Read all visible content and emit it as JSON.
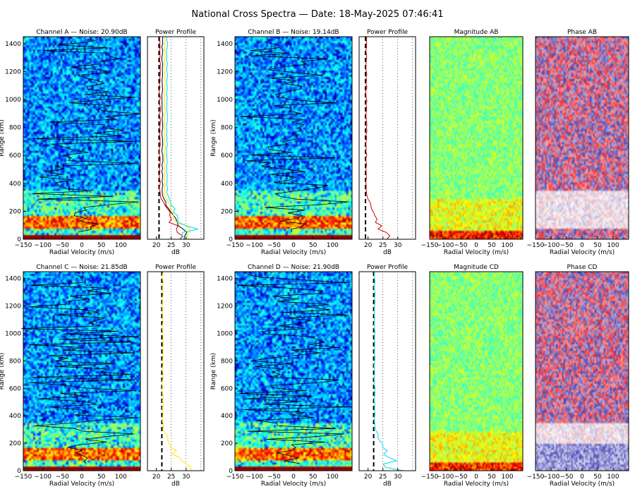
{
  "title": "National Cross Spectra — Date: 18-May-2025 07:46:41",
  "colors": {
    "noise_line": "#000000",
    "channel_a": "#cc0000",
    "channel_b": "#cc0000",
    "channel_c": "#ffe800",
    "channel_d": "#00d8f0",
    "profile_yellow": "#ffe800",
    "profile_cyan": "#00d8f0"
  },
  "chart_data": [
    {
      "id": "channel-a",
      "type": "heatmap",
      "title": "Channel A — Noise: 20.90dB",
      "xlabel": "Radial Velocity (m/s)",
      "ylabel": "Range (km)",
      "xlim": [
        -150,
        150
      ],
      "ylim": [
        0,
        1450
      ],
      "xticks": [
        -150,
        -100,
        -50,
        0,
        50,
        100
      ],
      "yticks": [
        0,
        200,
        400,
        600,
        800,
        1000,
        1200,
        1400
      ],
      "noise_db": 20.9,
      "colormap": "jet",
      "overlay": "doppler-trace"
    },
    {
      "id": "power-profile-a",
      "type": "line",
      "title": "Power Profile",
      "xlabel": "dB",
      "xlim": [
        17,
        36
      ],
      "ylim": [
        0,
        1450
      ],
      "xticks": [
        20,
        25,
        30
      ],
      "noise_level_db": 20.9,
      "series_colors": [
        "#cc0000",
        "#000000",
        "#ffe800",
        "#00d8f0"
      ]
    },
    {
      "id": "channel-b",
      "type": "heatmap",
      "title": "Channel B — Noise: 19.14dB",
      "xlabel": "Radial Velocity (m/s)",
      "ylabel": "Range (km)",
      "xlim": [
        -150,
        150
      ],
      "ylim": [
        0,
        1450
      ],
      "xticks": [
        -150,
        -100,
        -50,
        0,
        50,
        100
      ],
      "yticks": [
        0,
        200,
        400,
        600,
        800,
        1000,
        1200,
        1400
      ],
      "noise_db": 19.14,
      "colormap": "jet",
      "overlay": "doppler-trace"
    },
    {
      "id": "power-profile-b",
      "type": "line",
      "title": "Power Profile",
      "xlabel": "dB",
      "xlim": [
        17,
        36
      ],
      "ylim": [
        0,
        1450
      ],
      "xticks": [
        20,
        25,
        30
      ],
      "noise_level_db": 19.14,
      "series_colors": [
        "#cc0000"
      ]
    },
    {
      "id": "magnitude-ab",
      "type": "heatmap",
      "title": "Magnitude AB",
      "xlabel": "Radial Velocity (m/s)",
      "xlim": [
        -150,
        150
      ],
      "ylim": [
        0,
        1450
      ],
      "xticks": [
        -150,
        -100,
        -50,
        0,
        50,
        100
      ],
      "colormap": "jet"
    },
    {
      "id": "phase-ab",
      "type": "heatmap",
      "title": "Phase AB",
      "xlabel": "Radial Velocity (m/s)",
      "xlim": [
        -150,
        150
      ],
      "ylim": [
        0,
        1450
      ],
      "xticks": [
        -150,
        -100,
        -50,
        0,
        50,
        100
      ],
      "colormap": "red-white-blue"
    },
    {
      "id": "channel-c",
      "type": "heatmap",
      "title": "Channel C — Noise: 21.85dB",
      "xlabel": "Radial Velocity (m/s)",
      "ylabel": "Range (km)",
      "xlim": [
        -150,
        150
      ],
      "ylim": [
        0,
        1450
      ],
      "xticks": [
        -150,
        -100,
        -50,
        0,
        50,
        100
      ],
      "yticks": [
        0,
        200,
        400,
        600,
        800,
        1000,
        1200,
        1400
      ],
      "noise_db": 21.85,
      "colormap": "jet",
      "overlay": "doppler-trace"
    },
    {
      "id": "power-profile-c",
      "type": "line",
      "title": "Power Profile",
      "xlabel": "dB",
      "xlim": [
        17,
        36
      ],
      "ylim": [
        0,
        1450
      ],
      "xticks": [
        20,
        25,
        30
      ],
      "noise_level_db": 21.85,
      "series_colors": [
        "#ffe800"
      ]
    },
    {
      "id": "channel-d",
      "type": "heatmap",
      "title": "Channel D — Noise: 21.90dB",
      "xlabel": "Radial Velocity (m/s)",
      "ylabel": "Range (km)",
      "xlim": [
        -150,
        150
      ],
      "ylim": [
        0,
        1450
      ],
      "xticks": [
        -150,
        -100,
        -50,
        0,
        50,
        100
      ],
      "yticks": [
        0,
        200,
        400,
        600,
        800,
        1000,
        1200,
        1400
      ],
      "noise_db": 21.9,
      "colormap": "jet",
      "overlay": "doppler-trace"
    },
    {
      "id": "power-profile-d",
      "type": "line",
      "title": "Power Profile",
      "xlabel": "dB",
      "xlim": [
        17,
        36
      ],
      "ylim": [
        0,
        1450
      ],
      "xticks": [
        20,
        25,
        30
      ],
      "noise_level_db": 21.9,
      "series_colors": [
        "#00d8f0"
      ]
    },
    {
      "id": "magnitude-cd",
      "type": "heatmap",
      "title": "Magnitude CD",
      "xlabel": "Radial Velocity (m/s)",
      "xlim": [
        -150,
        150
      ],
      "ylim": [
        0,
        1450
      ],
      "xticks": [
        -150,
        -100,
        -50,
        0,
        50,
        100
      ],
      "colormap": "jet"
    },
    {
      "id": "phase-cd",
      "type": "heatmap",
      "title": "Phase CD",
      "xlabel": "Radial Velocity (m/s)",
      "xlim": [
        -150,
        150
      ],
      "ylim": [
        0,
        1450
      ],
      "xticks": [
        -150,
        -100,
        -50,
        0,
        50,
        100
      ],
      "colormap": "red-white-blue"
    }
  ]
}
